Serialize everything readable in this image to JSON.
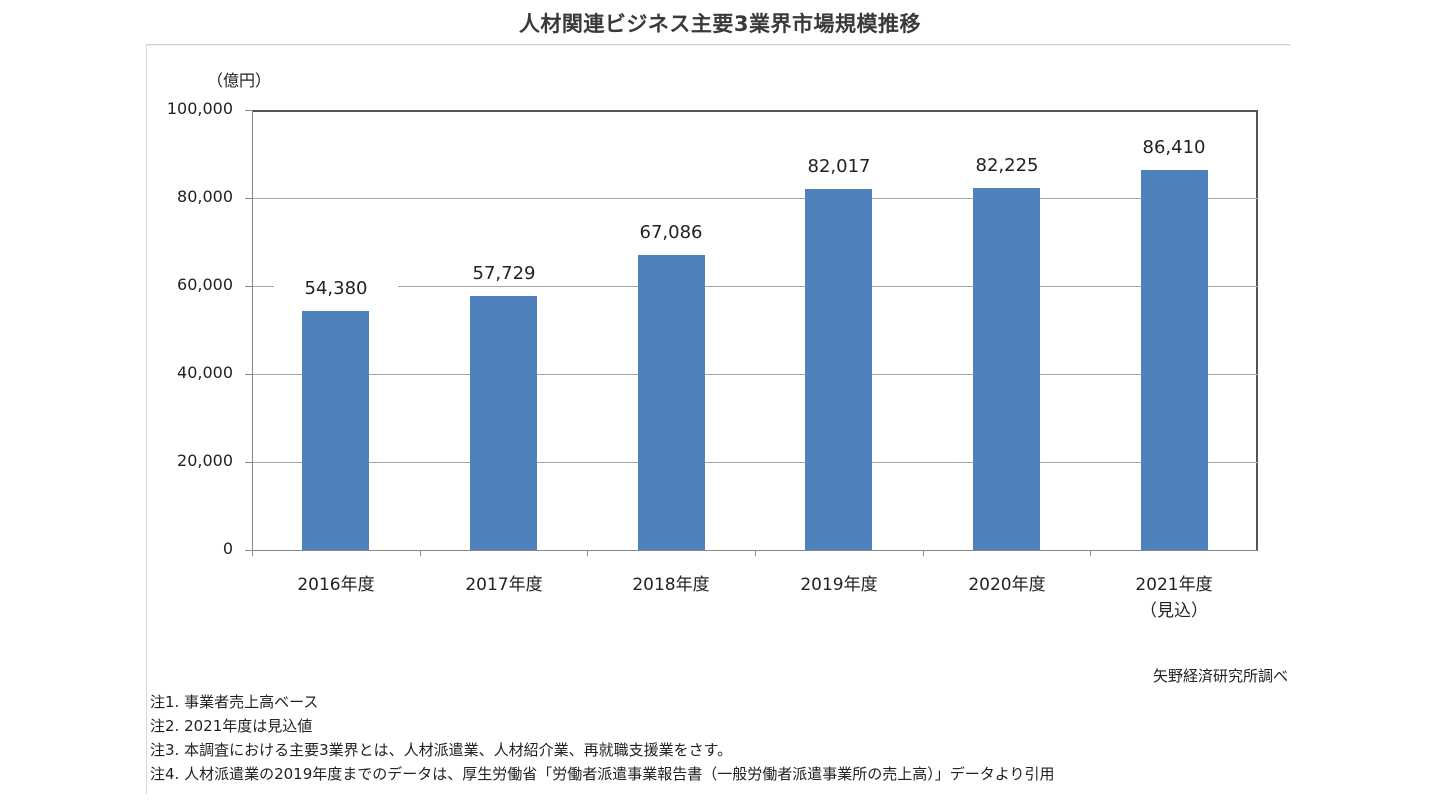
{
  "title": "人材関連ビジネス主要3業界市場規模推移",
  "unit_label": "（億円）",
  "y_axis": {
    "ticks": [
      {
        "label": "100,000",
        "value": 100000
      },
      {
        "label": "80,000",
        "value": 80000
      },
      {
        "label": "60,000",
        "value": 60000
      },
      {
        "label": "40,000",
        "value": 40000
      },
      {
        "label": "20,000",
        "value": 20000
      },
      {
        "label": "0",
        "value": 0
      }
    ]
  },
  "bars": [
    {
      "category": "2016年度",
      "category_sub": "",
      "value": 54380,
      "label": "54,380"
    },
    {
      "category": "2017年度",
      "category_sub": "",
      "value": 57729,
      "label": "57,729"
    },
    {
      "category": "2018年度",
      "category_sub": "",
      "value": 67086,
      "label": "67,086"
    },
    {
      "category": "2019年度",
      "category_sub": "",
      "value": 82017,
      "label": "82,017"
    },
    {
      "category": "2020年度",
      "category_sub": "",
      "value": 82225,
      "label": "82,225"
    },
    {
      "category": "2021年度",
      "category_sub": "（見込）",
      "value": 86410,
      "label": "86,410"
    }
  ],
  "bar_color": "#4F81BD",
  "source": "矢野経済研究所調べ",
  "notes": [
    "注1.  事業者売上高ベース",
    "注2.  2021年度は見込値",
    "注3.  本調査における主要3業界とは、人材派遣業、人材紹介業、再就職支援業をさす。",
    "注4.  人材派遣業の2019年度までのデータは、厚生労働省「労働者派遣事業報告書（一般労働者派遣事業所の売上高）」データより引用"
  ],
  "chart_data": {
    "type": "bar",
    "title": "人材関連ビジネス主要3業界市場規模推移",
    "categories": [
      "2016年度",
      "2017年度",
      "2018年度",
      "2019年度",
      "2020年度",
      "2021年度（見込）"
    ],
    "values": [
      54380,
      57729,
      67086,
      82017,
      82225,
      86410
    ],
    "data_labels": [
      "54,380",
      "57,729",
      "67,086",
      "82,017",
      "82,225",
      "86,410"
    ],
    "xlabel": "",
    "ylabel": "（億円）",
    "ylim": [
      0,
      100000
    ],
    "yticks": [
      0,
      20000,
      40000,
      60000,
      80000,
      100000
    ],
    "grid": true,
    "legend": "none",
    "series_color": "#4F81BD",
    "source": "矢野経済研究所調べ"
  }
}
